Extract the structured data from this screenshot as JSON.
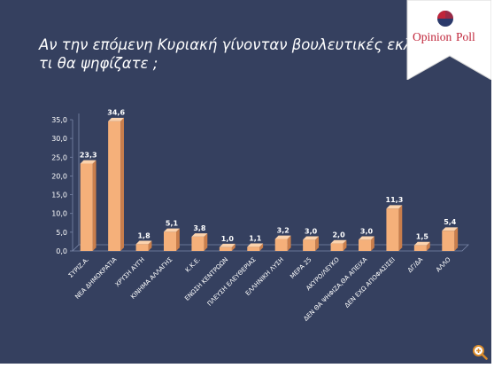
{
  "title": {
    "line1": "Αν την επόμενη Κυριακή γίνονταν βουλευτικές εκλογές,",
    "line2": "τι θα ψηφίζατε ;"
  },
  "logo": {
    "text_opinion": "Opinion",
    "text_poll": "Poll"
  },
  "colors": {
    "background": "#35405f",
    "bar_front": "#f5b07a",
    "bar_side": "#c97e4c",
    "bar_top": "#fbd3ae",
    "text": "#ffffff",
    "logo_red": "#c0253a",
    "logo_navy": "#2b3a6b"
  },
  "zoom_icon": "magnifier-plus-icon",
  "chart_data": {
    "type": "bar",
    "categories": [
      "ΣΥΡΙΖ.Α.",
      "ΝΕΑ ΔΗΜΟΚΡΑΤΙΑ",
      "ΧΡΥΣΗ ΑΥΓΗ",
      "ΚΙΝΗΜΑ ΑΛΛΑΓΗΣ",
      "Κ.Κ.Ε.",
      "ΕΝΩΣΗ ΚΕΝΤΡΩΩΝ",
      "ΠΛΕΥΣΗ ΕΛΕΥΘΕΡΙΑΣ",
      "ΕΛΛΗΝΙΚΗ ΛΥΣΗ",
      "ΜΕΡΑ 25",
      "ΑΚΥΡΟ/ΛΕΥΚΟ",
      "ΔΕΝ ΘΑ ΨΗΦΙΖΑ,ΘΑ ΑΠΕΙΧΑ",
      "ΔΕΝ ΕΧΩ ΑΠΟΦΑΣΙΣΕΙ",
      "ΔΓ/ΔΑ",
      "ΑΛΛΟ"
    ],
    "values": [
      23.3,
      34.6,
      1.8,
      5.1,
      3.8,
      1.0,
      1.1,
      3.2,
      3.0,
      2.0,
      3.0,
      11.3,
      1.5,
      5.4
    ],
    "data_labels": [
      "23,3",
      "34,6",
      "1,8",
      "5,1",
      "3,8",
      "1,0",
      "1,1",
      "3,2",
      "3,0",
      "2,0",
      "3,0",
      "11,3",
      "1,5",
      "5,4"
    ],
    "ylim": [
      0,
      35
    ],
    "yticks": [
      "0,0",
      "5,0",
      "10,0",
      "15,0",
      "20,0",
      "25,0",
      "30,0",
      "35,0"
    ],
    "grid": false,
    "legend": "none",
    "three_d": true
  }
}
